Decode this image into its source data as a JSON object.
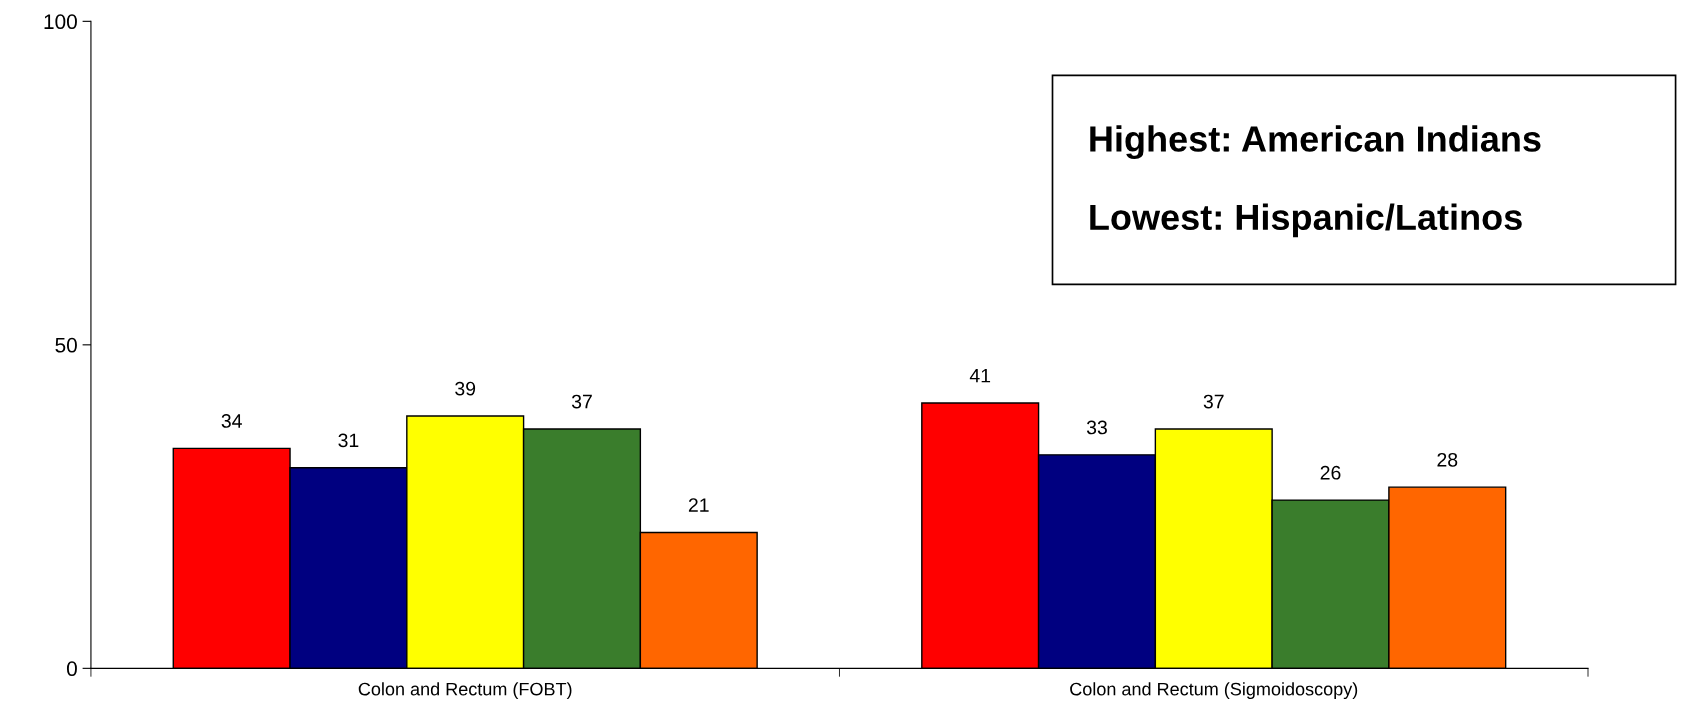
{
  "chart_data": {
    "type": "bar",
    "categories": [
      "Colon and Rectum (FOBT)",
      "Colon and Rectum (Sigmoidoscopy)"
    ],
    "series": [
      {
        "color": "#ff0000",
        "values": [
          34,
          41
        ]
      },
      {
        "color": "#000080",
        "values": [
          31,
          33
        ]
      },
      {
        "color": "#ffff00",
        "values": [
          39,
          37
        ]
      },
      {
        "color": "#3a7d2c",
        "values": [
          37,
          26
        ]
      },
      {
        "color": "#ff6600",
        "values": [
          21,
          28
        ]
      }
    ],
    "ylim": [
      0,
      100
    ],
    "yticks": [
      0,
      50,
      100
    ],
    "annotations": [
      "Highest: American Indians",
      "Lowest: Hispanic/Latinos"
    ],
    "data_labels": true,
    "grid": false,
    "legend": false
  }
}
